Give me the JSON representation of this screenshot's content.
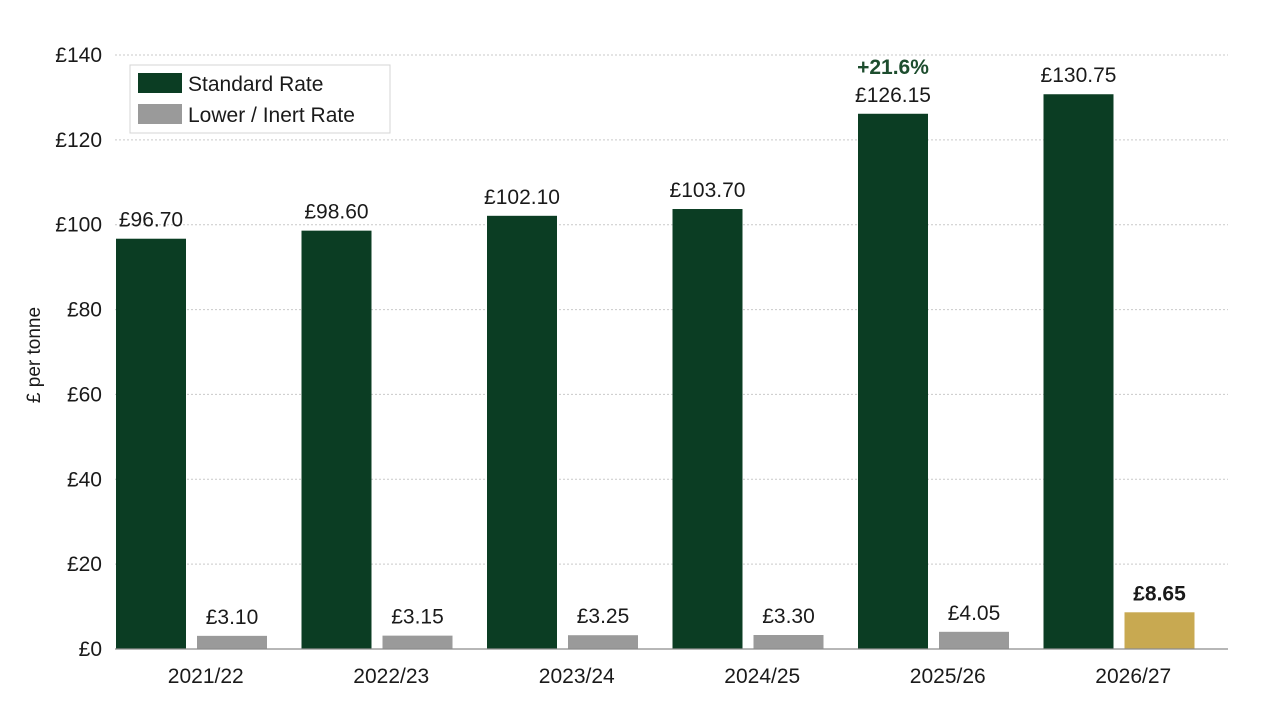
{
  "chart_data": {
    "type": "bar",
    "title": "",
    "xlabel": "",
    "ylabel": "£ per tonne",
    "ylim": [
      0,
      140
    ],
    "yticks": [
      0,
      20,
      40,
      60,
      80,
      100,
      120,
      140
    ],
    "ytick_labels": [
      "£0",
      "£20",
      "£40",
      "£60",
      "£80",
      "£100",
      "£120",
      "£140"
    ],
    "grid": true,
    "legend_position": "top-left",
    "categories": [
      "2021/22",
      "2022/23",
      "2023/24",
      "2024/25",
      "2025/26",
      "2026/27"
    ],
    "series": [
      {
        "name": "Standard Rate",
        "color": "#0b3d23",
        "values": [
          96.7,
          98.6,
          102.1,
          103.7,
          126.15,
          130.75
        ],
        "labels": [
          "£96.70",
          "£98.60",
          "£102.10",
          "£103.70",
          "£126.15",
          "£130.75"
        ]
      },
      {
        "name": "Lower / Inert Rate",
        "color": "#9a9a9a",
        "highlight_color": "#c8a951",
        "highlight_index": 5,
        "values": [
          3.1,
          3.15,
          3.25,
          3.3,
          4.05,
          8.65
        ],
        "labels": [
          "£3.10",
          "£3.15",
          "£3.25",
          "£3.30",
          "£4.05",
          "£8.65"
        ]
      }
    ],
    "annotations": [
      {
        "text": "+21.6%",
        "category": "2025/26",
        "series": 0,
        "color": "#1d4d2e"
      }
    ]
  }
}
